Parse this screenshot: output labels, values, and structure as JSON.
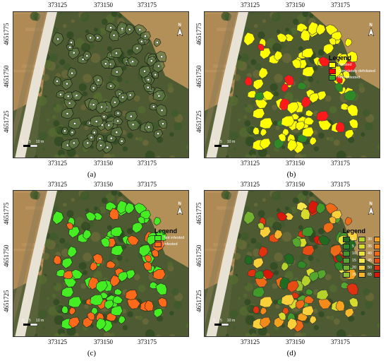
{
  "x_ticks": [
    "373125",
    "373150",
    "373175"
  ],
  "y_ticks": [
    "4651775",
    "4651750",
    "4651725"
  ],
  "north_label": "N",
  "scale": {
    "zero": "0",
    "five": "5",
    "ten": "10 m"
  },
  "panels": [
    {
      "caption": "(a)"
    },
    {
      "caption": "(b)",
      "legend": {
        "title": "Legend",
        "items": [
          {
            "label": "Infested",
            "color": "#ffff00"
          },
          {
            "label": "Completely defoliated",
            "color": "#ff0000"
          },
          {
            "label": "Non-infested",
            "color": "#33aa22"
          }
        ]
      }
    },
    {
      "caption": "(c)",
      "legend": {
        "title": "Legend",
        "items": [
          {
            "label": "Not infested",
            "color": "#44ee22"
          },
          {
            "label": "Infested",
            "color": "#ff6a1a"
          }
        ]
      }
    },
    {
      "caption": "(d)",
      "legend": {
        "title": "Legend",
        "items": [
          {
            "label": "0",
            "color": "#1f6b1f"
          },
          {
            "label": "30",
            "color": "#b5d22a"
          },
          {
            "label": "75",
            "color": "#f7a21e"
          },
          {
            "label": "5",
            "color": "#2f8a25"
          },
          {
            "label": "35",
            "color": "#d7dc2c"
          },
          {
            "label": "80",
            "color": "#f38a1a"
          },
          {
            "label": "10",
            "color": "#3f9a2a"
          },
          {
            "label": "40",
            "color": "#ede23a"
          },
          {
            "label": "85",
            "color": "#ee6a16"
          },
          {
            "label": "15",
            "color": "#55a62d"
          },
          {
            "label": "45",
            "color": "#f6e64a"
          },
          {
            "label": "90",
            "color": "#e74c12"
          },
          {
            "label": "20",
            "color": "#72b22e"
          },
          {
            "label": "50",
            "color": "#fad03a"
          },
          {
            "label": "95",
            "color": "#e0320e"
          },
          {
            "label": "25",
            "color": "#92c22c"
          },
          {
            "label": "65",
            "color": "#f8b72a"
          },
          {
            "label": "100",
            "color": "#d8190a"
          }
        ]
      }
    }
  ]
}
